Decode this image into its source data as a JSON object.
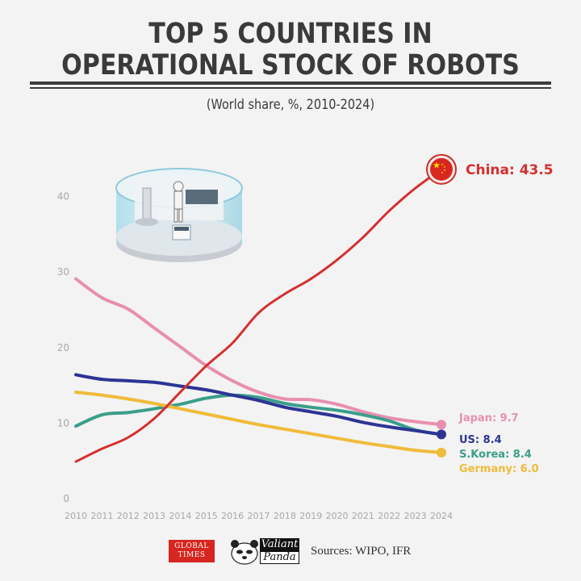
{
  "header": {
    "title_line1": "TOP 5 COUNTRIES IN",
    "title_line2": "OPERATIONAL STOCK OF ROBOTS",
    "subtitle": "(World share, %, 2010-2024)"
  },
  "footer": {
    "logo_global_times_line1": "GLOBAL",
    "logo_global_times_line2": "TIMES",
    "logo_valiant_panda_top": "Valiant",
    "logo_valiant_panda_bottom": "Panda",
    "sources": "Sources: WIPO, IFR"
  },
  "chart_data": {
    "type": "line",
    "title": "TOP 5 COUNTRIES IN OPERATIONAL STOCK OF ROBOTS",
    "subtitle": "(World share, %, 2010-2024)",
    "xlabel": "",
    "ylabel": "World share (%)",
    "x": [
      2010,
      2011,
      2012,
      2013,
      2014,
      2015,
      2016,
      2017,
      2018,
      2019,
      2020,
      2021,
      2022,
      2023,
      2024
    ],
    "x_tick_labels": [
      "2010",
      "2011",
      "2012",
      "2013",
      "2014",
      "2015",
      "2016",
      "2017",
      "2018",
      "2019",
      "2020",
      "2021",
      "2022",
      "2023",
      "2024"
    ],
    "y_ticks": [
      0,
      10,
      20,
      30,
      40
    ],
    "y_tick_labels": [
      "0",
      "10",
      "20",
      "30",
      "40"
    ],
    "ylim": [
      0,
      45
    ],
    "grid": false,
    "legend": "end-of-line labels (right)",
    "series": [
      {
        "name": "China",
        "color": "#d62f2f",
        "end_label": "China: 43.5",
        "values": [
          4.8,
          6.5,
          8.0,
          10.5,
          14.0,
          17.5,
          20.5,
          24.5,
          27.0,
          29.0,
          31.5,
          34.5,
          38.0,
          41.0,
          43.5
        ]
      },
      {
        "name": "Japan",
        "color": "#e88fb0",
        "end_label": "Japan: 9.7",
        "values": [
          29.0,
          26.5,
          25.0,
          22.5,
          20.0,
          17.5,
          15.5,
          14.0,
          13.1,
          13.0,
          12.4,
          11.4,
          10.6,
          10.1,
          9.7
        ]
      },
      {
        "name": "US",
        "color": "#2d3494",
        "end_label": "US: 8.4",
        "values": [
          16.3,
          15.7,
          15.5,
          15.3,
          14.8,
          14.3,
          13.6,
          12.9,
          12.0,
          11.4,
          10.8,
          10.0,
          9.4,
          8.9,
          8.4
        ]
      },
      {
        "name": "S.Korea",
        "color": "#3a9e8a",
        "end_label": "S.Korea: 8.4",
        "values": [
          9.5,
          11.0,
          11.3,
          11.8,
          12.4,
          13.2,
          13.6,
          13.3,
          12.5,
          12.0,
          11.6,
          11.0,
          10.2,
          9.0,
          8.4
        ]
      },
      {
        "name": "Germany",
        "color": "#efbb3a",
        "end_label": "Germany: 6.0",
        "values": [
          14.0,
          13.6,
          13.1,
          12.5,
          11.8,
          11.1,
          10.4,
          9.7,
          9.1,
          8.5,
          7.9,
          7.3,
          6.8,
          6.3,
          6.0
        ]
      }
    ],
    "annotations": [
      "China flag marker at 2024 endpoint",
      "Illustration of robots in a glass enclosure"
    ]
  }
}
